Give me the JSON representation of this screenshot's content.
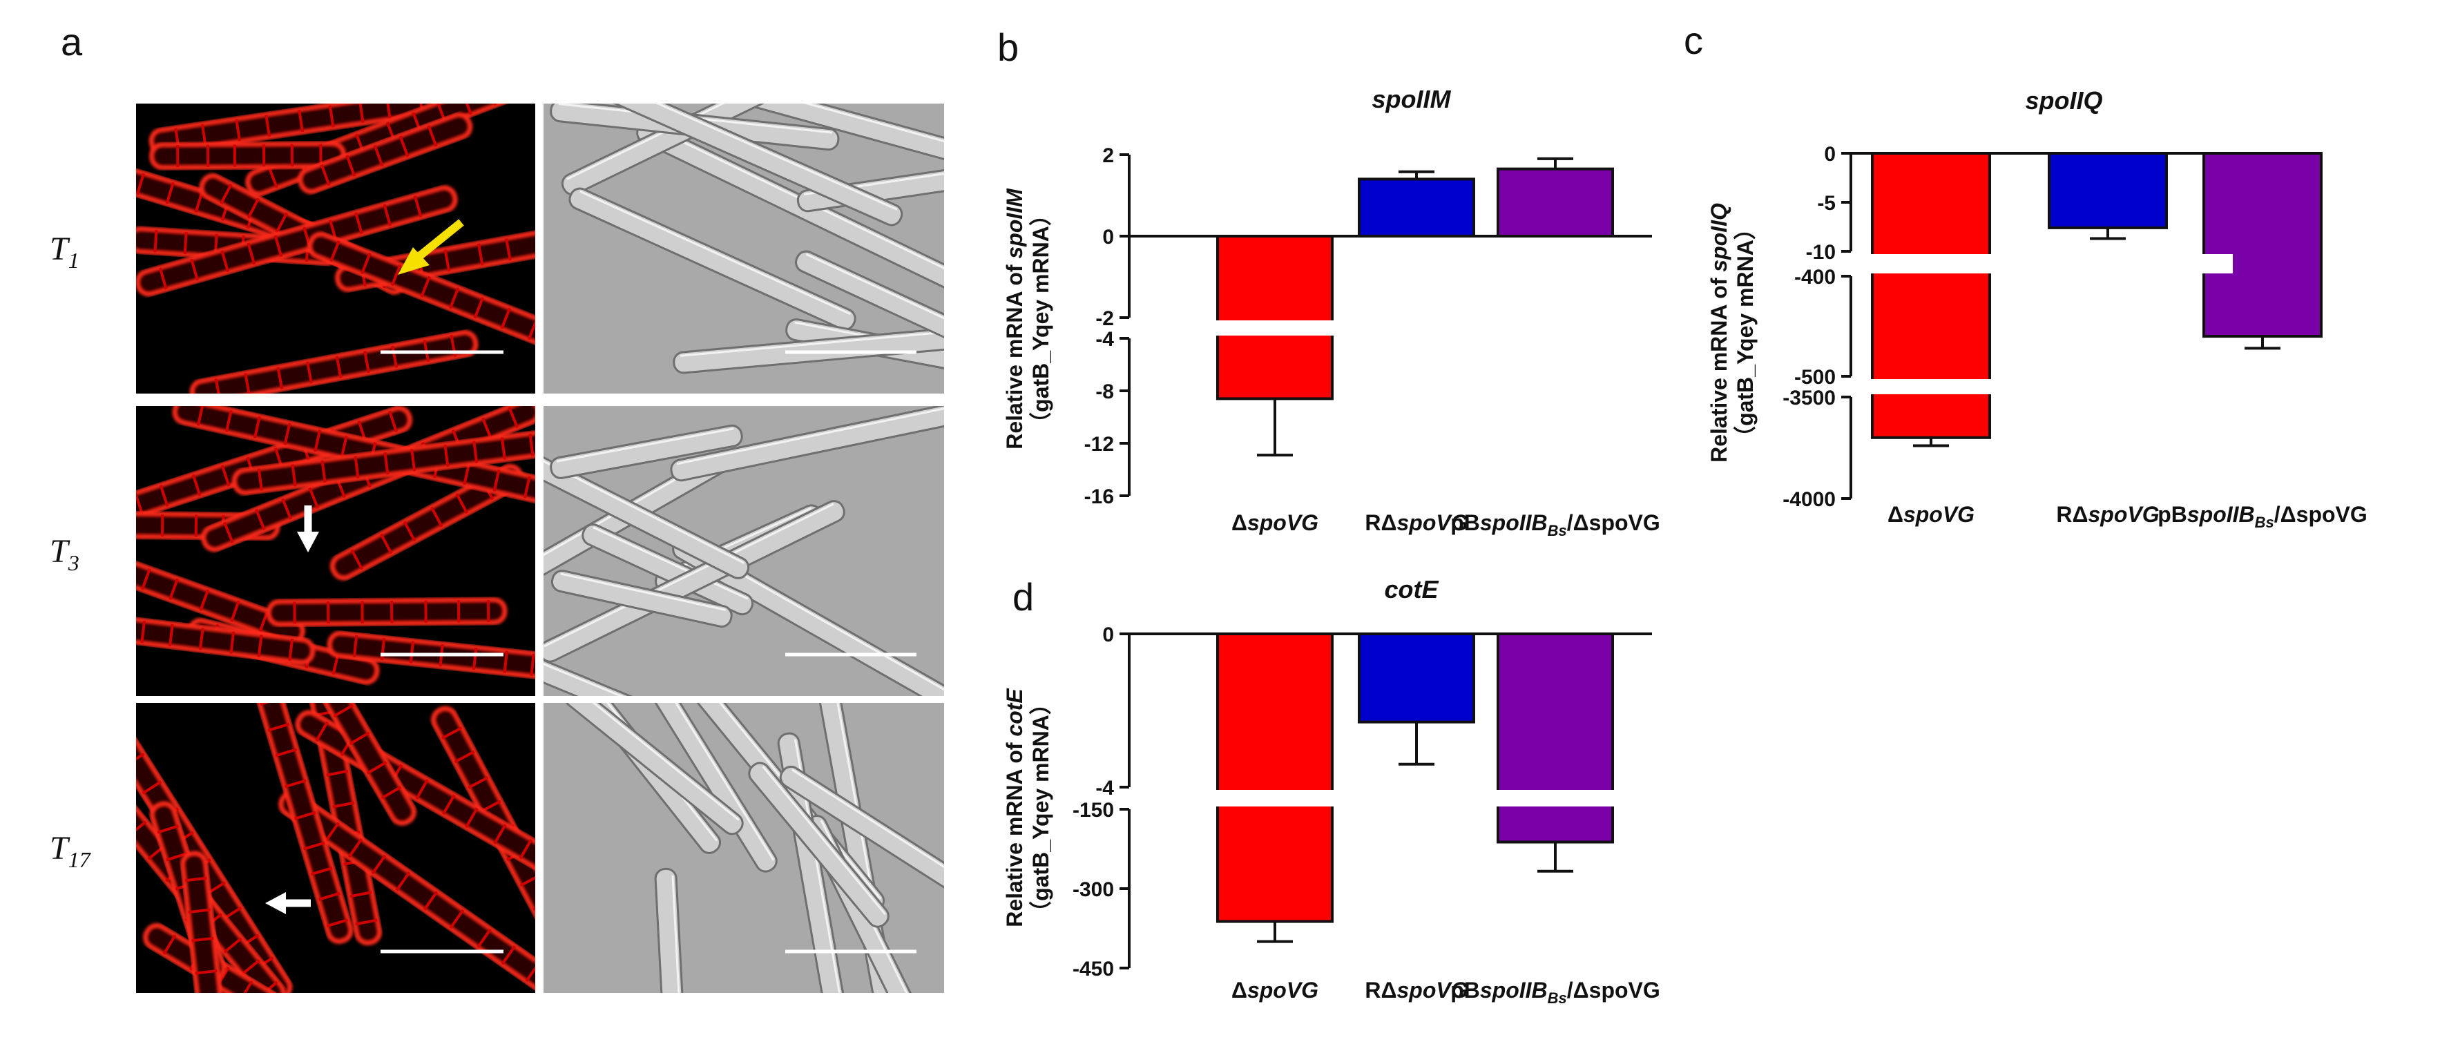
{
  "panel_letters": {
    "a": "a",
    "b": "b",
    "c": "c",
    "d": "d"
  },
  "micrograph": {
    "rows": [
      {
        "time_base": "T",
        "time_sub": "1",
        "arrow": "yellow",
        "arrow_dir": "down-left"
      },
      {
        "time_base": "T",
        "time_sub": "3",
        "arrow": "white",
        "arrow_dir": "down"
      },
      {
        "time_base": "T",
        "time_sub": "17",
        "arrow": "white",
        "arrow_dir": "left"
      }
    ],
    "colors": {
      "fluorescence": "#d00000",
      "cell_wall": "#ff2a1a",
      "dic": "#a9a9a9",
      "dic_cell": "#cfcfcf",
      "yellow_arrow": "#f5e000",
      "white_arrow": "#ffffff",
      "scale_bar": "#ffffff"
    }
  },
  "chart_data": [
    {
      "id": "b",
      "type": "bar",
      "title": "spoIIM",
      "ylabel_prefix": "Relative mRNA of ",
      "ylabel_gene": "spoIIM",
      "ylabel_line2": "（gatB_Yqey mRNA）",
      "categories": [
        {
          "prefix": "Δ",
          "gene": "spoVG",
          "sub": "",
          "suffix": ""
        },
        {
          "prefix": "RΔ",
          "gene": "spoVG",
          "sub": "",
          "suffix": ""
        },
        {
          "prefix": "pB",
          "gene": "spoIIB",
          "sub": "Bs",
          "suffix": "/ΔspoVG"
        }
      ],
      "values": [
        -8.6,
        1.4,
        1.65
      ],
      "errors": [
        4.3,
        0.18,
        0.25
      ],
      "colors": [
        "#ff0000",
        "#0000cc",
        "#7a00a8"
      ],
      "axis_segments": [
        {
          "range": [
            -2,
            2
          ],
          "ticks": [
            -2,
            0,
            2
          ]
        },
        {
          "range": [
            -16,
            -4
          ],
          "ticks": [
            -16,
            -12,
            -8,
            -4
          ]
        }
      ]
    },
    {
      "id": "c",
      "type": "bar",
      "title": "spoIIQ",
      "ylabel_prefix": "Relative mRNA of ",
      "ylabel_gene": "spoIIQ",
      "ylabel_line2": "（gatB_Yqey mRNA）",
      "categories": [
        {
          "prefix": "Δ",
          "gene": "spoVG",
          "sub": "",
          "suffix": ""
        },
        {
          "prefix": "RΔ",
          "gene": "spoVG",
          "sub": "",
          "suffix": ""
        },
        {
          "prefix": "pB",
          "gene": "spoIIB",
          "sub": "Bs",
          "suffix": "/ΔspoVG"
        }
      ],
      "values": [
        -3700,
        -7.6,
        -460
      ],
      "errors": [
        40,
        1.1,
        12
      ],
      "colors": [
        "#ff0000",
        "#0000cc",
        "#7a00a8"
      ],
      "axis_segments": [
        {
          "range": [
            -10,
            0
          ],
          "ticks": [
            -10,
            -5,
            0
          ]
        },
        {
          "range": [
            -500,
            -400
          ],
          "ticks": [
            -500,
            -400
          ]
        },
        {
          "range": [
            -4000,
            -3500
          ],
          "ticks": [
            -4000,
            -3500
          ]
        }
      ]
    },
    {
      "id": "d",
      "type": "bar",
      "title": "cotE",
      "ylabel_prefix": "Relative mRNA of ",
      "ylabel_gene": "cotE",
      "ylabel_line2": "（gatB_Yqey mRNA）",
      "categories": [
        {
          "prefix": "Δ",
          "gene": "spoVG",
          "sub": "",
          "suffix": ""
        },
        {
          "prefix": "RΔ",
          "gene": "spoVG",
          "sub": "",
          "suffix": ""
        },
        {
          "prefix": "pB",
          "gene": "spoIIB",
          "sub": "Bs",
          "suffix": "/ΔspoVG"
        }
      ],
      "values": [
        -362,
        -2.3,
        -212
      ],
      "errors": [
        38,
        1.1,
        55
      ],
      "colors": [
        "#ff0000",
        "#0000cc",
        "#7a00a8"
      ],
      "axis_segments": [
        {
          "range": [
            -4,
            0
          ],
          "ticks": [
            -4,
            0
          ]
        },
        {
          "range": [
            -450,
            -150
          ],
          "ticks": [
            -450,
            -300,
            -150
          ]
        }
      ]
    }
  ]
}
